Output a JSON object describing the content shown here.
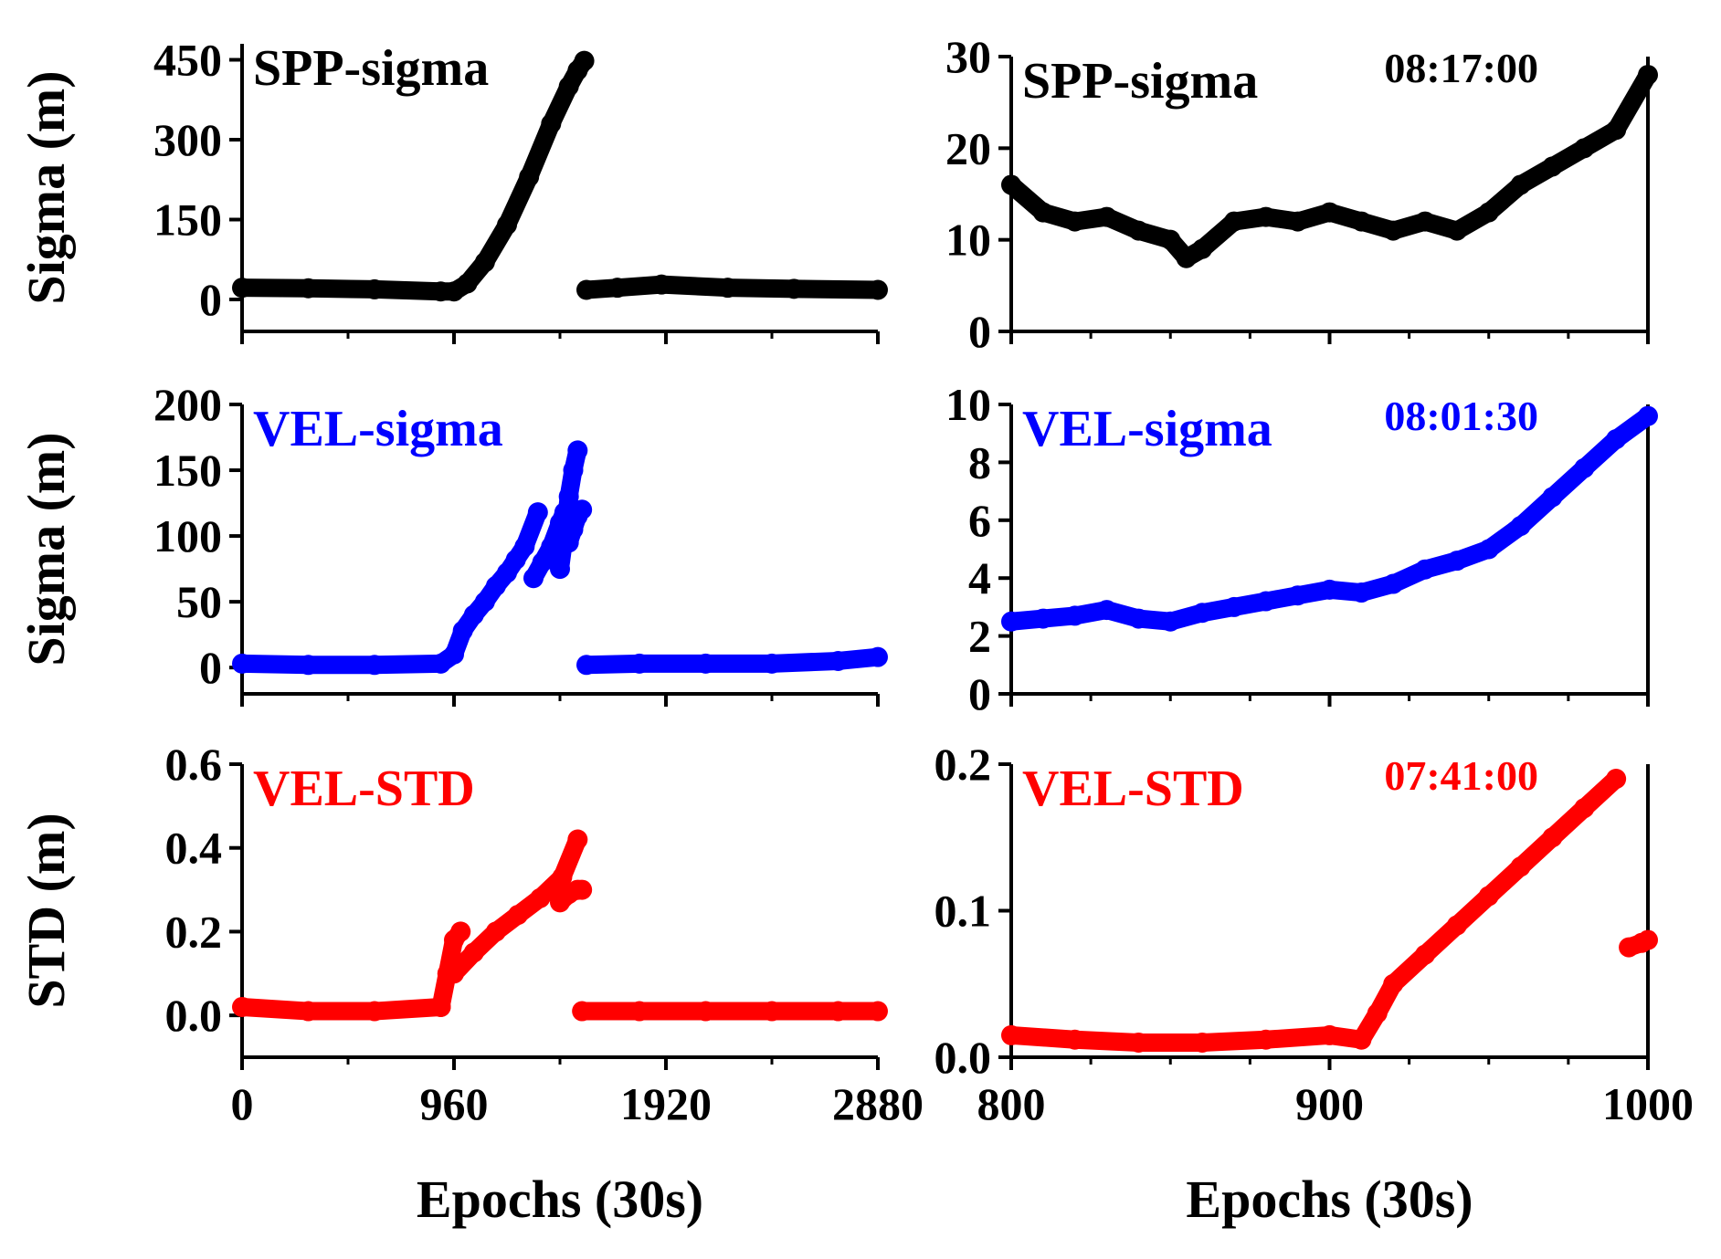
{
  "chart_data": [
    {
      "id": "p11",
      "type": "scatter",
      "title": "SPP-sigma",
      "ylabel": "Sigma (m)",
      "xlabel": "",
      "xlim": [
        0,
        2880
      ],
      "ylim": [
        -60,
        480
      ],
      "yticks": [
        0,
        150,
        300,
        450
      ],
      "ytick_labels": [
        "0",
        "150",
        "300",
        "450"
      ],
      "xticks": [
        0,
        960,
        1920,
        2880
      ],
      "xtick_labels": [],
      "color": "#000000",
      "time_label": "",
      "series": [
        {
          "name": "SPP-sigma",
          "segments": [
            {
              "x": [
                0,
                300,
                600,
                900,
                960,
                1020,
                1100,
                1200,
                1300,
                1400,
                1480,
                1520,
                1550
              ],
              "y": [
                22,
                21,
                19,
                15,
                15,
                30,
                70,
                140,
                230,
                330,
                400,
                430,
                448
              ]
            },
            {
              "x": [
                1560,
                1700,
                1900,
                2200,
                2500,
                2880
              ],
              "y": [
                18,
                22,
                28,
                22,
                20,
                18
              ]
            }
          ]
        }
      ]
    },
    {
      "id": "p12",
      "type": "scatter",
      "title": "SPP-sigma",
      "ylabel": "",
      "xlabel": "",
      "xlim": [
        800,
        1000
      ],
      "ylim": [
        0,
        30
      ],
      "yticks": [
        0,
        10,
        20,
        30
      ],
      "ytick_labels": [
        "0",
        "10",
        "20",
        "30"
      ],
      "xticks": [
        800,
        900,
        1000
      ],
      "xtick_labels": [],
      "color": "#000000",
      "time_label": "08:17:00",
      "series": [
        {
          "name": "SPP-sigma",
          "segments": [
            {
              "x": [
                800,
                810,
                820,
                830,
                840,
                850,
                855,
                860,
                870,
                880,
                890,
                900,
                910,
                920,
                930,
                940,
                950,
                960,
                970,
                980,
                990,
                1000
              ],
              "y": [
                16,
                13,
                12,
                12.5,
                11,
                10,
                8,
                9,
                12,
                12.5,
                12,
                13,
                12,
                11,
                12,
                11,
                13,
                16,
                18,
                20,
                22,
                28
              ]
            }
          ]
        }
      ]
    },
    {
      "id": "p21",
      "type": "scatter",
      "title": "VEL-sigma",
      "ylabel": "Sigma (m)",
      "xlabel": "",
      "xlim": [
        0,
        2880
      ],
      "ylim": [
        -20,
        200
      ],
      "yticks": [
        0,
        50,
        100,
        150,
        200
      ],
      "ytick_labels": [
        "0",
        "50",
        "100",
        "150",
        "200"
      ],
      "xticks": [
        0,
        960,
        1920,
        2880
      ],
      "xtick_labels": [],
      "color": "#0000ff",
      "time_label": "",
      "series": [
        {
          "name": "VEL-sigma",
          "segments": [
            {
              "x": [
                0,
                300,
                600,
                900,
                960,
                1000,
                1050,
                1100,
                1150,
                1200,
                1240,
                1280,
                1340
              ],
              "y": [
                3,
                2,
                2,
                3,
                10,
                28,
                40,
                50,
                62,
                72,
                82,
                92,
                118
              ]
            },
            {
              "x": [
                1320,
                1360,
                1400,
                1440,
                1460
              ],
              "y": [
                68,
                80,
                92,
                110,
                118
              ]
            },
            {
              "x": [
                1440,
                1460,
                1480,
                1500,
                1520
              ],
              "y": [
                75,
                100,
                130,
                150,
                165
              ]
            },
            {
              "x": [
                1480,
                1500,
                1520,
                1540
              ],
              "y": [
                95,
                105,
                115,
                120
              ]
            },
            {
              "x": [
                1560,
                1800,
                2100,
                2400,
                2700,
                2880
              ],
              "y": [
                2,
                3,
                3,
                3,
                5,
                8
              ]
            }
          ]
        }
      ]
    },
    {
      "id": "p22",
      "type": "scatter",
      "title": "VEL-sigma",
      "ylabel": "",
      "xlabel": "",
      "xlim": [
        800,
        1000
      ],
      "ylim": [
        0,
        10
      ],
      "yticks": [
        0,
        2,
        4,
        6,
        8,
        10
      ],
      "ytick_labels": [
        "0",
        "2",
        "4",
        "6",
        "8",
        "10"
      ],
      "xticks": [
        800,
        900,
        1000
      ],
      "xtick_labels": [],
      "color": "#0000ff",
      "time_label": "08:01:30",
      "series": [
        {
          "name": "VEL-sigma",
          "segments": [
            {
              "x": [
                800,
                810,
                820,
                830,
                840,
                850,
                860,
                870,
                880,
                890,
                900,
                910,
                920,
                930,
                940,
                950,
                960,
                970,
                980,
                990,
                1000
              ],
              "y": [
                2.5,
                2.6,
                2.7,
                2.9,
                2.6,
                2.5,
                2.8,
                3,
                3.2,
                3.4,
                3.6,
                3.5,
                3.8,
                4.3,
                4.6,
                5,
                5.8,
                6.8,
                7.8,
                8.8,
                9.6
              ]
            }
          ]
        }
      ]
    },
    {
      "id": "p31",
      "type": "scatter",
      "title": "VEL-STD",
      "ylabel": "STD (m)",
      "xlabel": "Epochs (30s)",
      "xlim": [
        0,
        2880
      ],
      "ylim": [
        -0.1,
        0.6
      ],
      "yticks": [
        0,
        0.2,
        0.4,
        0.6
      ],
      "ytick_labels": [
        "0.0",
        "0.2",
        "0.4",
        "0.6"
      ],
      "xticks": [
        0,
        960,
        1920,
        2880
      ],
      "xtick_labels": [
        "0",
        "960",
        "1920",
        "2880"
      ],
      "color": "#ff0000",
      "time_label": "",
      "series": [
        {
          "name": "VEL-STD",
          "segments": [
            {
              "x": [
                0,
                300,
                600,
                900
              ],
              "y": [
                0.02,
                0.01,
                0.01,
                0.02
              ]
            },
            {
              "x": [
                900,
                930,
                960,
                990
              ],
              "y": [
                0.02,
                0.1,
                0.18,
                0.2
              ]
            },
            {
              "x": [
                960,
                1050,
                1150,
                1250,
                1350,
                1450,
                1520
              ],
              "y": [
                0.1,
                0.15,
                0.2,
                0.24,
                0.28,
                0.33,
                0.42
              ]
            },
            {
              "x": [
                1440,
                1480,
                1520,
                1540
              ],
              "y": [
                0.27,
                0.29,
                0.3,
                0.3
              ]
            },
            {
              "x": [
                1540,
                1800,
                2100,
                2400,
                2700,
                2880
              ],
              "y": [
                0.01,
                0.01,
                0.01,
                0.01,
                0.01,
                0.01
              ]
            }
          ]
        }
      ]
    },
    {
      "id": "p32",
      "type": "scatter",
      "title": "VEL-STD",
      "ylabel": "",
      "xlabel": "Epochs (30s)",
      "xlim": [
        800,
        1000
      ],
      "ylim": [
        0,
        0.2
      ],
      "yticks": [
        0,
        0.1,
        0.2
      ],
      "ytick_labels": [
        "0.0",
        "0.1",
        "0.2"
      ],
      "xticks": [
        800,
        900,
        1000
      ],
      "xtick_labels": [
        "800",
        "900",
        "1000"
      ],
      "color": "#ff0000",
      "time_label": "07:41:00",
      "series": [
        {
          "name": "VEL-STD",
          "segments": [
            {
              "x": [
                800,
                820,
                840,
                860,
                880,
                900,
                910,
                915,
                920,
                930,
                940,
                950,
                960,
                970,
                980,
                990
              ],
              "y": [
                0.015,
                0.012,
                0.01,
                0.01,
                0.012,
                0.015,
                0.012,
                0.03,
                0.05,
                0.07,
                0.09,
                0.11,
                0.13,
                0.15,
                0.17,
                0.19
              ]
            },
            {
              "x": [
                994,
                998,
                1000
              ],
              "y": [
                0.075,
                0.078,
                0.08
              ]
            }
          ]
        }
      ]
    }
  ]
}
